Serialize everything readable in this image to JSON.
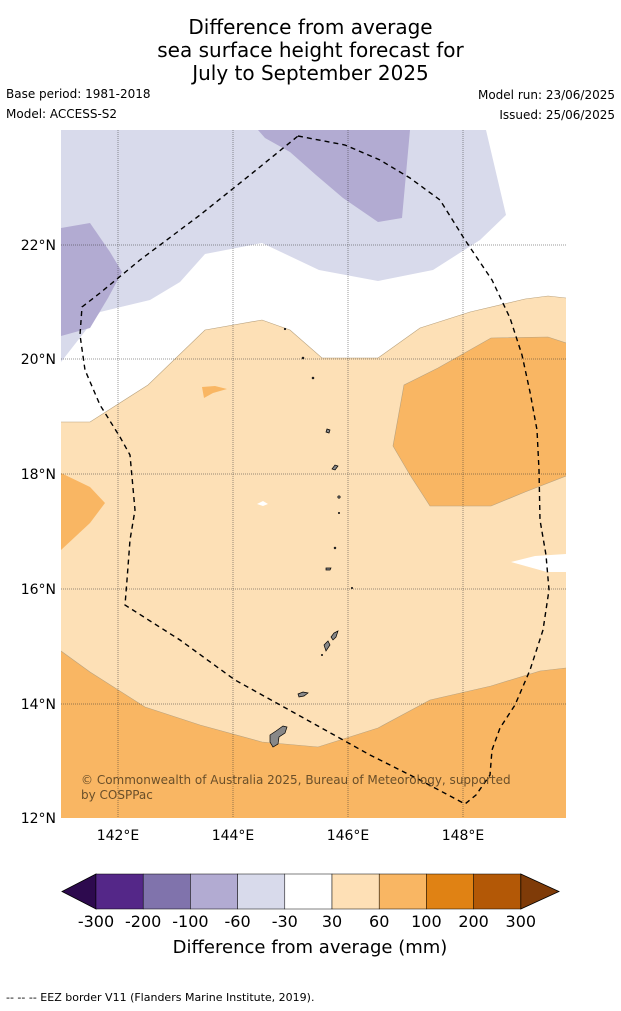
{
  "title_lines": [
    "Difference from average",
    "sea surface height forecast for",
    "July to September 2025"
  ],
  "meta": {
    "base_period": "Base period: 1981-2018",
    "model": "Model: ACCESS-S2",
    "model_run": "Model run: 23/06/2025",
    "issued": "Issued: 25/06/2025"
  },
  "map": {
    "lat_ticks": [
      "22°N",
      "20°N",
      "18°N",
      "16°N",
      "14°N",
      "12°N"
    ],
    "lon_ticks": [
      "142°E",
      "144°E",
      "146°E",
      "148°E"
    ],
    "copyright_lines": [
      "© Commonwealth of Australia 2025, Bureau of Meteorology, supported",
      "by COSPPac"
    ]
  },
  "colorbar": {
    "labels": [
      "-300",
      "-200",
      "-100",
      "-60",
      "-30",
      "30",
      "60",
      "100",
      "200",
      "300"
    ],
    "colors": [
      "#2d0a4e",
      "#542788",
      "#8073ac",
      "#b2abd2",
      "#d8daeb",
      "#ffffff",
      "#fee0b6",
      "#f9b663",
      "#e08214",
      "#b35806",
      "#7f3b08"
    ],
    "title": "Difference from average (mm)"
  },
  "footer": "--  --  -- EEZ border V11 (Flanders Marine Institute, 2019)."
}
